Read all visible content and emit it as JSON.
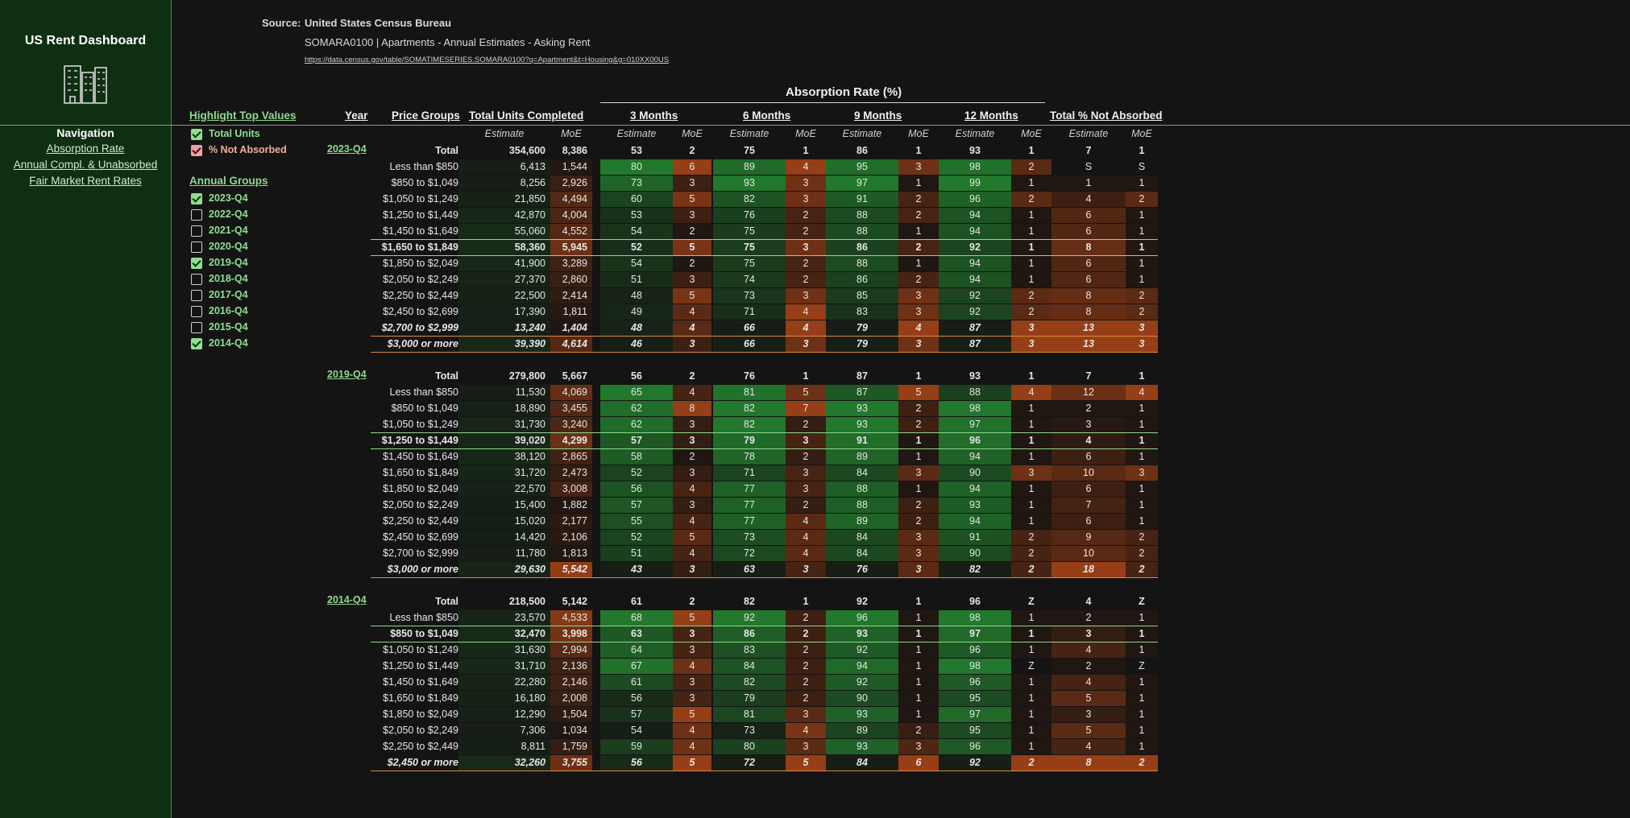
{
  "sidebar": {
    "title": "US Rent Dashboard",
    "icon": "buildings-icon",
    "nav_heading": "Navigation",
    "nav_links": [
      "Absorption Rate",
      "Annual Compl. & Unabsorbed",
      "Fair Market Rent Rates"
    ]
  },
  "source": {
    "label": "Source:",
    "name": "United States Census Bureau",
    "desc": "SOMARA0100 | Apartments - Annual Estimates - Asking Rent",
    "url": "https://data.census.gov/table/SOMATIMESERIES.SOMARA0100?q=Apartment&t=Housing&g=010XX00US"
  },
  "controls": {
    "highlight_heading": "Highlight Top Values",
    "highlight_options": [
      {
        "label": "Total Units",
        "checked": true
      },
      {
        "label": "% Not Absorbed",
        "checked": true
      }
    ],
    "groups_heading": "Annual Groups",
    "groups": [
      {
        "label": "2023-Q4",
        "checked": true
      },
      {
        "label": "2022-Q4",
        "checked": false
      },
      {
        "label": "2021-Q4",
        "checked": false
      },
      {
        "label": "2020-Q4",
        "checked": false
      },
      {
        "label": "2019-Q4",
        "checked": true
      },
      {
        "label": "2018-Q4",
        "checked": false
      },
      {
        "label": "2017-Q4",
        "checked": false
      },
      {
        "label": "2016-Q4",
        "checked": false
      },
      {
        "label": "2015-Q4",
        "checked": false
      },
      {
        "label": "2014-Q4",
        "checked": true
      }
    ]
  },
  "table": {
    "super_header": "Absorption Rate (%)",
    "headers": [
      "Year",
      "Price Groups",
      "Total Units Completed",
      "3 Months",
      "6 Months",
      "9 Months",
      "12 Months",
      "Total % Not Absorbed"
    ],
    "sub_estimate": "Estimate",
    "sub_moe": "MoE",
    "groups": [
      {
        "year": "2023-Q4",
        "rows": [
          {
            "label": "Total",
            "style": "total",
            "v": [
              "354,600",
              "8,386",
              "53",
              "2",
              "75",
              "1",
              "86",
              "1",
              "93",
              "1",
              "7",
              "1"
            ]
          },
          {
            "label": "Less than $850",
            "v": [
              "6,413",
              "1,544",
              "80",
              "6",
              "89",
              "4",
              "95",
              "3",
              "98",
              "2",
              "S",
              "S"
            ]
          },
          {
            "label": "$850 to $1,049",
            "v": [
              "8,256",
              "2,926",
              "73",
              "3",
              "93",
              "3",
              "97",
              "1",
              "99",
              "1",
              "1",
              "1"
            ]
          },
          {
            "label": "$1,050 to $1,249",
            "v": [
              "21,850",
              "4,494",
              "60",
              "5",
              "82",
              "3",
              "91",
              "2",
              "96",
              "2",
              "4",
              "2"
            ]
          },
          {
            "label": "$1,250 to $1,449",
            "v": [
              "42,870",
              "4,004",
              "53",
              "3",
              "76",
              "2",
              "88",
              "2",
              "94",
              "1",
              "6",
              "1"
            ]
          },
          {
            "label": "$1,450 to $1,649",
            "v": [
              "55,060",
              "4,552",
              "54",
              "2",
              "75",
              "2",
              "88",
              "1",
              "94",
              "1",
              "6",
              "1"
            ]
          },
          {
            "label": "$1,650 to $1,849",
            "style": "gtop",
            "v": [
              "58,360",
              "5,945",
              "52",
              "5",
              "75",
              "3",
              "86",
              "2",
              "92",
              "1",
              "8",
              "1"
            ]
          },
          {
            "label": "$1,850 to $2,049",
            "v": [
              "41,900",
              "3,289",
              "54",
              "2",
              "75",
              "2",
              "88",
              "1",
              "94",
              "1",
              "6",
              "1"
            ]
          },
          {
            "label": "$2,050 to $2,249",
            "v": [
              "27,370",
              "2,860",
              "51",
              "3",
              "74",
              "2",
              "86",
              "2",
              "94",
              "1",
              "6",
              "1"
            ]
          },
          {
            "label": "$2,250 to $2,449",
            "v": [
              "22,500",
              "2,414",
              "48",
              "5",
              "73",
              "3",
              "85",
              "3",
              "92",
              "2",
              "8",
              "2"
            ]
          },
          {
            "label": "$2,450 to $2,699",
            "v": [
              "17,390",
              "1,811",
              "49",
              "4",
              "71",
              "4",
              "83",
              "3",
              "92",
              "2",
              "8",
              "2"
            ]
          },
          {
            "label": "$2,700 to $2,999",
            "style": "otop",
            "v": [
              "13,240",
              "1,404",
              "48",
              "4",
              "66",
              "4",
              "79",
              "4",
              "87",
              "3",
              "13",
              "3"
            ]
          },
          {
            "label": "$3,000 or more",
            "style": "otop",
            "v": [
              "39,390",
              "4,614",
              "46",
              "3",
              "66",
              "3",
              "79",
              "3",
              "87",
              "3",
              "13",
              "3"
            ]
          }
        ]
      },
      {
        "year": "2019-Q4",
        "rows": [
          {
            "label": "Total",
            "style": "total",
            "v": [
              "279,800",
              "5,667",
              "56",
              "2",
              "76",
              "1",
              "87",
              "1",
              "93",
              "1",
              "7",
              "1"
            ]
          },
          {
            "label": "Less than $850",
            "v": [
              "11,530",
              "4,069",
              "65",
              "4",
              "81",
              "5",
              "87",
              "5",
              "88",
              "4",
              "12",
              "4"
            ]
          },
          {
            "label": "$850 to $1,049",
            "v": [
              "18,890",
              "3,455",
              "62",
              "8",
              "82",
              "7",
              "93",
              "2",
              "98",
              "1",
              "2",
              "1"
            ]
          },
          {
            "label": "$1,050 to $1,249",
            "v": [
              "31,730",
              "3,240",
              "62",
              "3",
              "82",
              "2",
              "93",
              "2",
              "97",
              "1",
              "3",
              "1"
            ]
          },
          {
            "label": "$1,250 to $1,449",
            "style": "gtop",
            "v": [
              "39,020",
              "4,299",
              "57",
              "3",
              "79",
              "3",
              "91",
              "1",
              "96",
              "1",
              "4",
              "1"
            ]
          },
          {
            "label": "$1,450 to $1,649",
            "v": [
              "38,120",
              "2,865",
              "58",
              "2",
              "78",
              "2",
              "89",
              "1",
              "94",
              "1",
              "6",
              "1"
            ]
          },
          {
            "label": "$1,650 to $1,849",
            "v": [
              "31,720",
              "2,473",
              "52",
              "3",
              "71",
              "3",
              "84",
              "3",
              "90",
              "3",
              "10",
              "3"
            ]
          },
          {
            "label": "$1,850 to $2,049",
            "v": [
              "22,570",
              "3,008",
              "56",
              "4",
              "77",
              "3",
              "88",
              "1",
              "94",
              "1",
              "6",
              "1"
            ]
          },
          {
            "label": "$2,050 to $2,249",
            "v": [
              "15,400",
              "1,882",
              "57",
              "3",
              "77",
              "2",
              "88",
              "2",
              "93",
              "1",
              "7",
              "1"
            ]
          },
          {
            "label": "$2,250 to $2,449",
            "v": [
              "15,020",
              "2,177",
              "55",
              "4",
              "77",
              "4",
              "89",
              "2",
              "94",
              "1",
              "6",
              "1"
            ]
          },
          {
            "label": "$2,450 to $2,699",
            "v": [
              "14,420",
              "2,106",
              "52",
              "5",
              "73",
              "4",
              "84",
              "3",
              "91",
              "2",
              "9",
              "2"
            ]
          },
          {
            "label": "$2,700 to $2,999",
            "v": [
              "11,780",
              "1,813",
              "51",
              "4",
              "72",
              "4",
              "84",
              "3",
              "90",
              "2",
              "10",
              "2"
            ]
          },
          {
            "label": "$3,000 or more",
            "style": "otop",
            "v": [
              "29,630",
              "5,542",
              "43",
              "3",
              "63",
              "3",
              "76",
              "3",
              "82",
              "2",
              "18",
              "2"
            ]
          }
        ]
      },
      {
        "year": "2014-Q4",
        "rows": [
          {
            "label": "Total",
            "style": "total",
            "v": [
              "218,500",
              "5,142",
              "61",
              "2",
              "82",
              "1",
              "92",
              "1",
              "96",
              "Z",
              "4",
              "Z"
            ]
          },
          {
            "label": "Less than $850",
            "v": [
              "23,570",
              "4,533",
              "68",
              "5",
              "92",
              "2",
              "96",
              "1",
              "98",
              "1",
              "2",
              "1"
            ]
          },
          {
            "label": "$850 to $1,049",
            "style": "gtop",
            "v": [
              "32,470",
              "3,998",
              "63",
              "3",
              "86",
              "2",
              "93",
              "1",
              "97",
              "1",
              "3",
              "1"
            ]
          },
          {
            "label": "$1,050 to $1,249",
            "v": [
              "31,630",
              "2,994",
              "64",
              "3",
              "83",
              "2",
              "92",
              "1",
              "96",
              "1",
              "4",
              "1"
            ]
          },
          {
            "label": "$1,250 to $1,449",
            "v": [
              "31,710",
              "2,136",
              "67",
              "4",
              "84",
              "2",
              "94",
              "1",
              "98",
              "Z",
              "2",
              "Z"
            ]
          },
          {
            "label": "$1,450 to $1,649",
            "v": [
              "22,280",
              "2,146",
              "61",
              "3",
              "82",
              "2",
              "92",
              "1",
              "96",
              "1",
              "4",
              "1"
            ]
          },
          {
            "label": "$1,650 to $1,849",
            "v": [
              "16,180",
              "2,008",
              "56",
              "3",
              "79",
              "2",
              "90",
              "1",
              "95",
              "1",
              "5",
              "1"
            ]
          },
          {
            "label": "$1,850 to $2,049",
            "v": [
              "12,290",
              "1,504",
              "57",
              "5",
              "81",
              "3",
              "93",
              "1",
              "97",
              "1",
              "3",
              "1"
            ]
          },
          {
            "label": "$2,050 to $2,249",
            "v": [
              "7,306",
              "1,034",
              "54",
              "4",
              "73",
              "4",
              "89",
              "2",
              "95",
              "1",
              "5",
              "1"
            ]
          },
          {
            "label": "$2,250 to $2,449",
            "v": [
              "8,811",
              "1,759",
              "59",
              "4",
              "80",
              "3",
              "93",
              "3",
              "96",
              "1",
              "4",
              "1"
            ]
          },
          {
            "label": "$2,450 or more",
            "style": "otop",
            "v": [
              "32,260",
              "3,755",
              "56",
              "5",
              "72",
              "5",
              "84",
              "6",
              "92",
              "2",
              "8",
              "2"
            ]
          }
        ]
      }
    ]
  }
}
